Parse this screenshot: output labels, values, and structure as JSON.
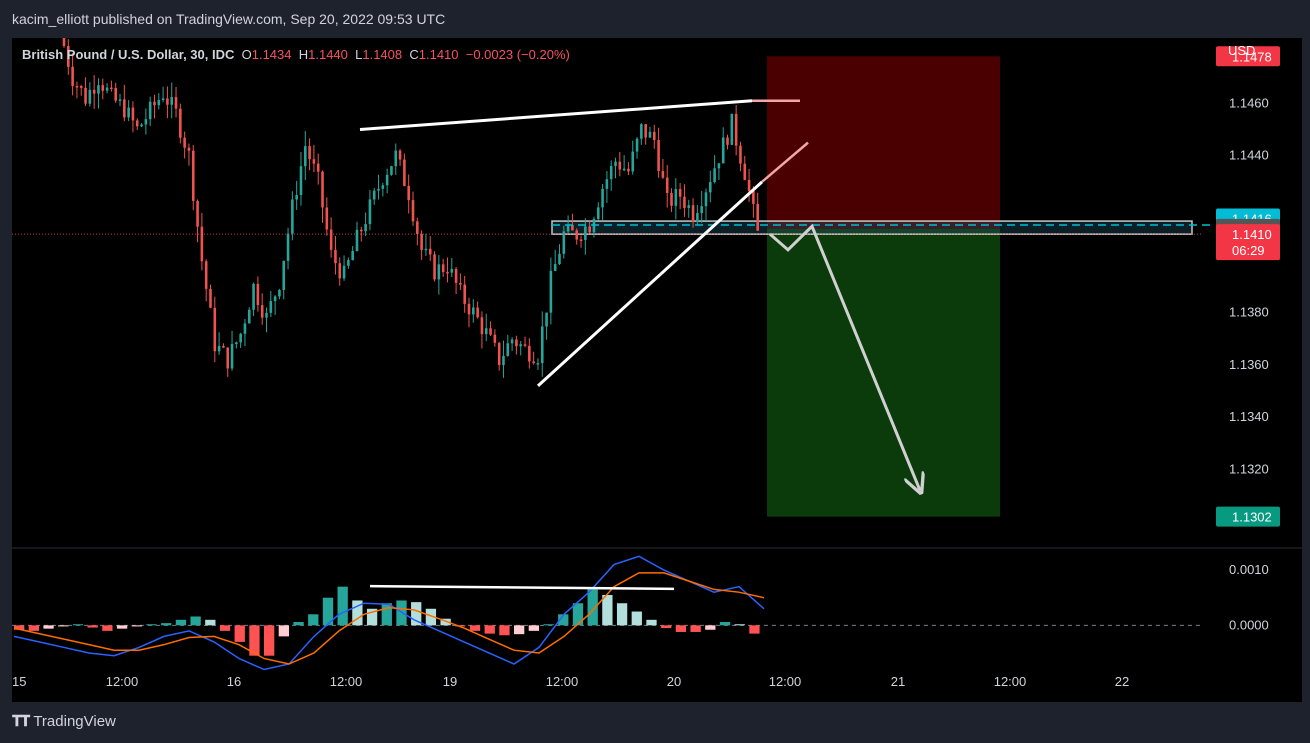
{
  "header": {
    "published": "kacim_elliott published on TradingView.com, Sep 20, 2022 09:53 UTC"
  },
  "legend": {
    "symbol": "British Pound / U.S. Dollar, 30, IDC",
    "o_label": "O",
    "o_val": "1.1434",
    "h_label": "H",
    "h_val": "1.1440",
    "l_label": "L",
    "l_val": "1.1408",
    "c_label": "C",
    "c_val": "1.1410",
    "change": "−0.0023 (−0.20%)"
  },
  "currency": "USD",
  "footer": {
    "brand": "TradingView",
    "logo_icon": "tradingview-logo-icon"
  },
  "colors": {
    "up": "#26a69a",
    "down": "#ef5350",
    "stop_zone": "#4a0000",
    "target_zone": "#0b3a0b",
    "accent": "#00bcd4"
  },
  "chart_data": [
    {
      "type": "candlestick",
      "title": "British Pound / U.S. Dollar, 30, IDC",
      "ylabel": "USD",
      "ylim": [
        1.129,
        1.1485
      ],
      "y_ticks": [
        "1.1460",
        "1.1440",
        "1.1380",
        "1.1360",
        "1.1340",
        "1.1320"
      ],
      "x_ticks": [
        "15",
        "12:00",
        "16",
        "12:00",
        "19",
        "12:00",
        "20",
        "12:00",
        "21",
        "12:00",
        "22"
      ],
      "price_labels": [
        {
          "text": "1.1478",
          "value": 1.1478,
          "color": "#f23645"
        },
        {
          "text": "1.1416",
          "value": 1.1416,
          "color": "#00bcd4"
        },
        {
          "text": "1.1412",
          "value": 1.1412,
          "color": "#555555"
        },
        {
          "text": "1.1410",
          "sub": "06:29",
          "value": 1.141,
          "color": "#f23645"
        },
        {
          "text": "1.1302",
          "value": 1.1302,
          "color": "#089981"
        }
      ],
      "last_price": 1.141,
      "position": {
        "type": "short",
        "entry": 1.1412,
        "stop": 1.1478,
        "target": 1.1302
      },
      "zone": {
        "top": 1.1415,
        "bottom": 1.141
      },
      "path": [
        1.1488,
        1.147,
        1.1462,
        1.147,
        1.1462,
        1.1458,
        1.145,
        1.1457,
        1.1464,
        1.1456,
        1.144,
        1.14,
        1.1368,
        1.1362,
        1.1372,
        1.139,
        1.1378,
        1.1392,
        1.142,
        1.1444,
        1.143,
        1.1402,
        1.1394,
        1.1408,
        1.142,
        1.1432,
        1.144,
        1.1426,
        1.1404,
        1.1396,
        1.1398,
        1.1387,
        1.138,
        1.1372,
        1.1362,
        1.137,
        1.1366,
        1.1364,
        1.1392,
        1.141,
        1.141,
        1.1414,
        1.1428,
        1.1438,
        1.1434,
        1.145,
        1.1446,
        1.1422,
        1.1425,
        1.1418,
        1.1428,
        1.144,
        1.1452,
        1.1434,
        1.141
      ],
      "arrow_path": [
        1.141,
        1.1404,
        1.1413,
        1.1312
      ],
      "resistance_line": [
        1.145,
        1.1461
      ],
      "support_line": [
        1.1352,
        1.1445
      ]
    },
    {
      "type": "bar",
      "title": "",
      "ylim": [
        -0.0007,
        0.0014
      ],
      "y_ticks": [
        "0.0010",
        "0.0000"
      ],
      "histogram": [
        -8e-05,
        -0.0001,
        -6e-05,
        -2e-05,
        2e-05,
        -4e-05,
        -0.0001,
        -6e-05,
        -2e-05,
        2e-05,
        4e-05,
        0.0001,
        0.00016,
        0.0001,
        -0.0001,
        -0.0003,
        -0.00055,
        -0.00055,
        -0.0002,
        6e-05,
        0.0002,
        0.0005,
        0.0007,
        0.00045,
        0.0003,
        0.0004,
        0.00045,
        0.00042,
        0.0003,
        0.00012,
        -2e-05,
        -0.0001,
        -0.00015,
        -0.00018,
        -0.00016,
        -0.0001,
        2e-05,
        0.0002,
        0.0004,
        0.00065,
        0.00055,
        0.0004,
        0.00025,
        0.0001,
        -5e-05,
        -0.00012,
        -0.00012,
        -8e-05,
        6e-05,
        2e-05,
        -0.00015
      ],
      "macd_line": [
        -0.0002,
        -0.0003,
        -0.0004,
        -0.0005,
        -0.00055,
        -0.0004,
        -0.0002,
        -0.0001,
        -0.0003,
        -0.0006,
        -0.0008,
        -0.0007,
        -0.0002,
        0.0002,
        0.0004,
        0.00038,
        0.0001,
        -0.0001,
        -0.0003,
        -0.0005,
        -0.0007,
        -0.0004,
        0.0002,
        0.0006,
        0.0011,
        0.00125,
        0.001,
        0.0008,
        0.0006,
        0.0007,
        0.0003
      ],
      "signal_line": [
        -5e-05,
        -0.00015,
        -0.00025,
        -0.00035,
        -0.00045,
        -0.00045,
        -0.00035,
        -0.00022,
        -0.0002,
        -0.00035,
        -0.0006,
        -0.0007,
        -0.0005,
        -0.0001,
        0.0002,
        0.00032,
        0.00028,
        0.00012,
        -5e-05,
        -0.00025,
        -0.00045,
        -0.0005,
        -0.0002,
        0.0002,
        0.0007,
        0.00095,
        0.00095,
        0.0008,
        0.00065,
        0.0006,
        0.0005
      ],
      "divergence_line": [
        0.00071,
        0.00066
      ]
    }
  ]
}
